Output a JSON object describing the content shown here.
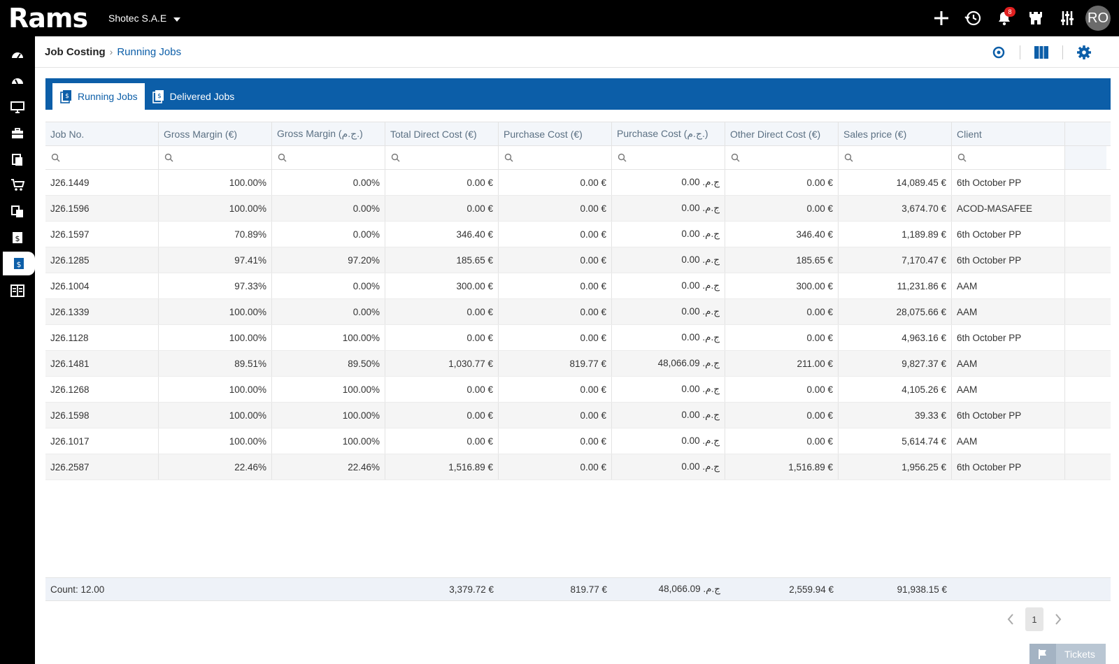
{
  "app": {
    "logo": "Rams",
    "company": "Shotec S.A.E"
  },
  "topbar": {
    "notifications_count": "8",
    "avatar": "RO"
  },
  "breadcrumb": {
    "root": "Job Costing",
    "current": "Running Jobs"
  },
  "tabs": [
    {
      "label": "Running Jobs",
      "active": true
    },
    {
      "label": "Delivered Jobs",
      "active": false
    }
  ],
  "table": {
    "columns": [
      "Job No.",
      "Gross Margin (€)",
      "Gross Margin (ج.م.)",
      "Total Direct Cost (€)",
      "Purchase Cost (€)",
      "Purchase Cost (ج.م.)",
      "Other Direct Cost (€)",
      "Sales price (€)",
      "Client"
    ],
    "rows": [
      [
        "J26.1449",
        "100.00%",
        "0.00%",
        "0.00 €",
        "0.00 €",
        "ج.م. 0.00",
        "0.00 €",
        "14,089.45 €",
        "6th October PP"
      ],
      [
        "J26.1596",
        "100.00%",
        "0.00%",
        "0.00 €",
        "0.00 €",
        "ج.م. 0.00",
        "0.00 €",
        "3,674.70 €",
        "ACOD-MASAFEE"
      ],
      [
        "J26.1597",
        "70.89%",
        "0.00%",
        "346.40 €",
        "0.00 €",
        "ج.م. 0.00",
        "346.40 €",
        "1,189.89 €",
        "6th October PP"
      ],
      [
        "J26.1285",
        "97.41%",
        "97.20%",
        "185.65 €",
        "0.00 €",
        "ج.م. 0.00",
        "185.65 €",
        "7,170.47 €",
        "6th October PP"
      ],
      [
        "J26.1004",
        "97.33%",
        "0.00%",
        "300.00 €",
        "0.00 €",
        "ج.م. 0.00",
        "300.00 €",
        "11,231.86 €",
        "AAM"
      ],
      [
        "J26.1339",
        "100.00%",
        "0.00%",
        "0.00 €",
        "0.00 €",
        "ج.م. 0.00",
        "0.00 €",
        "28,075.66 €",
        "AAM"
      ],
      [
        "J26.1128",
        "100.00%",
        "100.00%",
        "0.00 €",
        "0.00 €",
        "ج.م. 0.00",
        "0.00 €",
        "4,963.16 €",
        "6th October PP"
      ],
      [
        "J26.1481",
        "89.51%",
        "89.50%",
        "1,030.77 €",
        "819.77 €",
        "ج.م. 48,066.09",
        "211.00 €",
        "9,827.37 €",
        "AAM"
      ],
      [
        "J26.1268",
        "100.00%",
        "100.00%",
        "0.00 €",
        "0.00 €",
        "ج.م. 0.00",
        "0.00 €",
        "4,105.26 €",
        "AAM"
      ],
      [
        "J26.1598",
        "100.00%",
        "100.00%",
        "0.00 €",
        "0.00 €",
        "ج.م. 0.00",
        "0.00 €",
        "39.33 €",
        "6th October PP"
      ],
      [
        "J26.1017",
        "100.00%",
        "100.00%",
        "0.00 €",
        "0.00 €",
        "ج.م. 0.00",
        "0.00 €",
        "5,614.74 €",
        "AAM"
      ],
      [
        "J26.2587",
        "22.46%",
        "22.46%",
        "1,516.89 €",
        "0.00 €",
        "ج.م. 0.00",
        "1,516.89 €",
        "1,956.25 €",
        "6th October PP"
      ]
    ],
    "summary": {
      "count": "Count: 12.00",
      "total_direct_cost": "3,379.72 €",
      "purchase_cost_eur": "819.77 €",
      "purchase_cost_egp": "ج.م. 48,066.09",
      "other_direct_cost": "2,559.94 €",
      "sales_price": "91,938.15 €"
    }
  },
  "pagination": {
    "current_page": "1"
  },
  "tickets": {
    "label": "Tickets"
  },
  "colors": {
    "topbar": "#000000",
    "accent": "#0c5ea8",
    "badge": "#e02020"
  }
}
